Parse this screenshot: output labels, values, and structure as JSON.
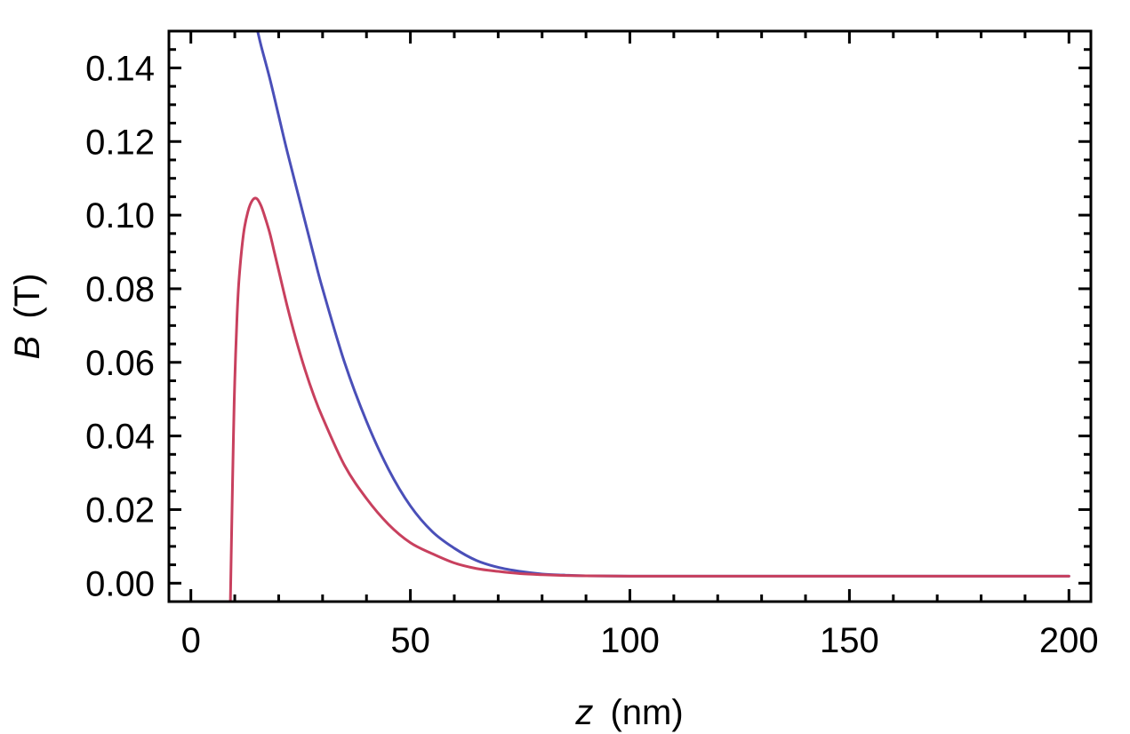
{
  "chart_data": {
    "type": "line",
    "title": "",
    "xlabel": {
      "symbol": "z",
      "unit": "(nm)"
    },
    "ylabel": {
      "symbol": "B",
      "unit": "(T)"
    },
    "xlim": [
      -5,
      205
    ],
    "ylim": [
      -0.005,
      0.15
    ],
    "x_ticks": [
      0,
      50,
      100,
      150,
      200
    ],
    "x_tick_labels": [
      "0",
      "50",
      "100",
      "150",
      "200"
    ],
    "y_ticks": [
      0.0,
      0.02,
      0.04,
      0.06,
      0.08,
      0.1,
      0.12,
      0.14
    ],
    "y_tick_labels": [
      "0.00",
      "0.02",
      "0.04",
      "0.06",
      "0.08",
      "0.10",
      "0.12",
      "0.14"
    ],
    "grid": false,
    "legend": "none",
    "series": [
      {
        "color": "#4a4fb8",
        "x": [
          15.2,
          16,
          18,
          20,
          22,
          25,
          28,
          30,
          35,
          40,
          45,
          50,
          55,
          60,
          65,
          70,
          75,
          80,
          85,
          90,
          100,
          120,
          150,
          200
        ],
        "y": [
          0.15,
          0.146,
          0.137,
          0.127,
          0.117,
          0.103,
          0.089,
          0.08,
          0.06,
          0.044,
          0.031,
          0.021,
          0.014,
          0.0095,
          0.0062,
          0.0043,
          0.0032,
          0.0025,
          0.0022,
          0.002,
          0.0019,
          0.0019,
          0.0019,
          0.0019
        ]
      },
      {
        "color": "#c8405e",
        "x": [
          9,
          9.3,
          9.7,
          10,
          10.5,
          11,
          12,
          13,
          14,
          15,
          16,
          17,
          18,
          19,
          20,
          22,
          24,
          26,
          28,
          30,
          35,
          40,
          45,
          50,
          55,
          60,
          65,
          70,
          75,
          80,
          85,
          90,
          100,
          120,
          150,
          200
        ],
        "y": [
          -0.005,
          0.015,
          0.04,
          0.055,
          0.072,
          0.083,
          0.095,
          0.101,
          0.104,
          0.1045,
          0.1025,
          0.099,
          0.095,
          0.09,
          0.085,
          0.075,
          0.066,
          0.058,
          0.051,
          0.045,
          0.032,
          0.023,
          0.016,
          0.011,
          0.008,
          0.0055,
          0.004,
          0.0032,
          0.0026,
          0.0023,
          0.0021,
          0.002,
          0.0019,
          0.0019,
          0.0019,
          0.0019
        ]
      }
    ]
  }
}
